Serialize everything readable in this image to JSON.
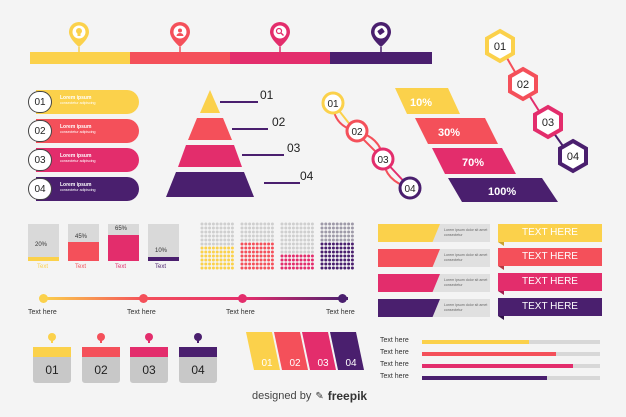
{
  "colors": {
    "yellow": "#fbd14b",
    "coral": "#f4505a",
    "pink": "#e32d6c",
    "purple": "#4a1f6e",
    "grey": "#dddddd",
    "dark": "#333333"
  },
  "top_bar": {
    "icons": [
      "lightbulb-icon",
      "user-icon",
      "search-icon",
      "tag-icon"
    ]
  },
  "pill_list": {
    "items": [
      {
        "num": "01",
        "line1": "Lorem ipsum",
        "line2": "consectetur adipiscing",
        "color": "#fbd14b"
      },
      {
        "num": "02",
        "line1": "Lorem ipsum",
        "line2": "consectetur adipiscing",
        "color": "#f4505a"
      },
      {
        "num": "03",
        "line1": "Lorem ipsum",
        "line2": "consectetur adipiscing",
        "color": "#e32d6c"
      },
      {
        "num": "04",
        "line1": "Lorem ipsum",
        "line2": "consectetur adipiscing",
        "color": "#4a1f6e"
      }
    ]
  },
  "pyramid": {
    "labels": [
      "01",
      "02",
      "03",
      "04"
    ]
  },
  "circle_chain": {
    "labels": [
      "01",
      "02",
      "03",
      "04"
    ]
  },
  "percent_bars": {
    "labels": [
      "10%",
      "30%",
      "70%",
      "100%"
    ]
  },
  "hex_chain": {
    "labels": [
      "01",
      "02",
      "03",
      "04"
    ]
  },
  "grey_bars": {
    "items": [
      {
        "pct": "20%",
        "label": "Text",
        "value": 20,
        "color": "#fbd14b"
      },
      {
        "pct": "45%",
        "label": "Text",
        "value": 45,
        "color": "#f4505a"
      },
      {
        "pct": "65%",
        "label": "Text",
        "value": 65,
        "color": "#e32d6c"
      },
      {
        "pct": "10%",
        "label": "Text",
        "value": 10,
        "color": "#4a1f6e"
      }
    ]
  },
  "dot_grids": {
    "fills": [
      0.5,
      0.55,
      0.35,
      0.55
    ]
  },
  "banners": {
    "label": "TEXT HERE",
    "items": [
      "TEXT HERE",
      "TEXT HERE",
      "TEXT HERE",
      "TEXT HERE"
    ]
  },
  "timeline": {
    "labels": [
      "Text here",
      "Text here",
      "Text here",
      "Text here"
    ]
  },
  "number_cards": {
    "labels": [
      "01",
      "02",
      "03",
      "04"
    ]
  },
  "para_row": {
    "labels": [
      "01",
      "02",
      "03",
      "04"
    ]
  },
  "progress_list": {
    "items": [
      {
        "label": "Text here",
        "value": 0.6,
        "color": "#fbd14b"
      },
      {
        "label": "Text here",
        "value": 0.75,
        "color": "#f4505a"
      },
      {
        "label": "Text here",
        "value": 0.85,
        "color": "#e32d6c"
      },
      {
        "label": "Text here",
        "value": 0.7,
        "color": "#4a1f6e"
      }
    ]
  },
  "credit": {
    "text": "designed by",
    "brand": "freepik"
  }
}
